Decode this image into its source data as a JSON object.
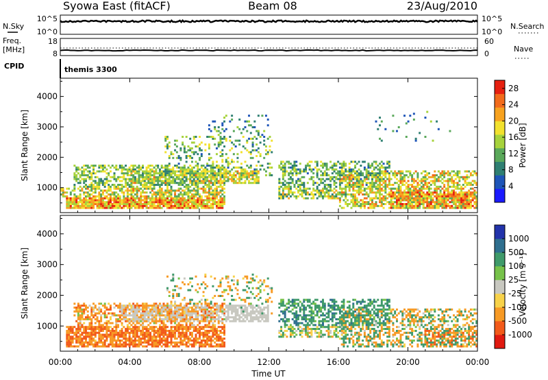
{
  "header": {
    "radar": "Syowa East (fitACF)",
    "beam": "Beam 08",
    "date": "23/Aug/2010"
  },
  "status_panels": {
    "nsky_label": "N.Sky",
    "nsearch_label": "N.Search",
    "nsky_ticks": [
      "10^5",
      "10^0"
    ],
    "nsearch_ticks": [
      "10^5",
      "10^0"
    ],
    "freq_label_1": "Freq.",
    "freq_label_2": "[MHz]",
    "freq_ticks": [
      "18",
      "8"
    ],
    "nave_label": "Nave",
    "nave_ticks": [
      "60",
      "0"
    ],
    "cpid_label": "CPID",
    "cpid_value": "themis 3300",
    "colors": {
      "trace": "#000000"
    }
  },
  "chart_data": [
    {
      "type": "heatmap",
      "name": "power",
      "xlabel": "",
      "ylabel": "Slant Range [km]",
      "x_range_hours": [
        0,
        24
      ],
      "ylim_km": [
        180,
        4600
      ],
      "y_ticks": [
        "4000",
        "3000",
        "2000",
        "1000"
      ],
      "y_tick_values": [
        4000,
        3000,
        2000,
        1000
      ],
      "colorbar": {
        "label": "Power [dB]",
        "ticks": [
          "28",
          "24",
          "20",
          "16",
          "12",
          "8",
          "4"
        ],
        "tick_values": [
          28,
          24,
          20,
          16,
          12,
          8,
          4
        ],
        "range": [
          0,
          30
        ],
        "colors": [
          "#1a1aff",
          "#1e55b8",
          "#2f7f72",
          "#5aa85a",
          "#a6d23c",
          "#f2e12e",
          "#f7a21f",
          "#f26b1b",
          "#e62010"
        ]
      },
      "regions": [
        {
          "t": [
            0.3,
            9.5
          ],
          "r": [
            300,
            680
          ],
          "density": 0.9,
          "v": [
            14,
            29
          ]
        },
        {
          "t": [
            0.0,
            9.5
          ],
          "r": [
            680,
            1000
          ],
          "density": 0.65,
          "v": [
            10,
            24
          ]
        },
        {
          "t": [
            0.8,
            9.5
          ],
          "r": [
            1000,
            1750
          ],
          "density": 0.55,
          "v": [
            8,
            20
          ]
        },
        {
          "t": [
            4.0,
            11.5
          ],
          "r": [
            1150,
            1600
          ],
          "density": 0.7,
          "v": [
            10,
            24
          ]
        },
        {
          "t": [
            6.0,
            12.2
          ],
          "r": [
            1400,
            2700
          ],
          "density": 0.25,
          "v": [
            6,
            20
          ]
        },
        {
          "t": [
            8.5,
            12.0
          ],
          "r": [
            2500,
            3400
          ],
          "density": 0.12,
          "v": [
            4,
            16
          ]
        },
        {
          "t": [
            12.5,
            16.5
          ],
          "r": [
            600,
            1000
          ],
          "density": 0.65,
          "v": [
            8,
            22
          ]
        },
        {
          "t": [
            12.5,
            19.0
          ],
          "r": [
            1000,
            1900
          ],
          "density": 0.5,
          "v": [
            6,
            18
          ]
        },
        {
          "t": [
            16.0,
            24.0
          ],
          "r": [
            300,
            1600
          ],
          "density": 0.55,
          "v": [
            10,
            26
          ]
        },
        {
          "t": [
            19.0,
            24.0
          ],
          "r": [
            300,
            900
          ],
          "density": 0.8,
          "v": [
            18,
            30
          ]
        },
        {
          "t": [
            18.0,
            22.5
          ],
          "r": [
            2500,
            3500
          ],
          "density": 0.05,
          "v": [
            4,
            14
          ]
        }
      ]
    },
    {
      "type": "heatmap",
      "name": "velocity",
      "xlabel": "Time UT",
      "ylabel": "Slant Range [km]",
      "x_range_hours": [
        0,
        24
      ],
      "x_ticks": [
        "00:00",
        "04:00",
        "08:00",
        "12:00",
        "16:00",
        "20:00",
        "00:00"
      ],
      "x_tick_values": [
        0,
        4,
        8,
        12,
        16,
        20,
        24
      ],
      "ylim_km": [
        180,
        4600
      ],
      "y_ticks": [
        "4000",
        "3000",
        "2000",
        "1000"
      ],
      "y_tick_values": [
        4000,
        3000,
        2000,
        1000
      ],
      "colorbar": {
        "label": "Velocity [m s⁻¹]",
        "ticks": [
          "1000",
          "500",
          "100",
          "25",
          "-25",
          "-100",
          "-500",
          "-1000"
        ],
        "tick_values": [
          1000,
          500,
          100,
          25,
          -25,
          -100,
          -500,
          -1000
        ],
        "colors": [
          "#2233aa",
          "#2f6f8f",
          "#3f9a6a",
          "#77c24a",
          "#c8c8c0",
          "#f7d24a",
          "#f79a25",
          "#f25a1a",
          "#e01a10"
        ]
      },
      "regions": [
        {
          "t": [
            0.3,
            9.5
          ],
          "r": [
            300,
            1000
          ],
          "density": 0.8,
          "v": [
            -900,
            -80
          ]
        },
        {
          "t": [
            0.8,
            9.5
          ],
          "r": [
            1000,
            1750
          ],
          "density": 0.5,
          "v": [
            -600,
            60
          ]
        },
        {
          "t": [
            3.5,
            12.0
          ],
          "r": [
            1100,
            1700
          ],
          "density": 0.75,
          "v": [
            -20,
            20
          ]
        },
        {
          "t": [
            6.0,
            12.2
          ],
          "r": [
            1400,
            2700
          ],
          "density": 0.2,
          "v": [
            -300,
            300
          ]
        },
        {
          "t": [
            12.5,
            16.5
          ],
          "r": [
            600,
            1000
          ],
          "density": 0.55,
          "v": [
            -150,
            200
          ]
        },
        {
          "t": [
            12.5,
            19.0
          ],
          "r": [
            1000,
            1900
          ],
          "density": 0.5,
          "v": [
            30,
            600
          ]
        },
        {
          "t": [
            16.0,
            24.0
          ],
          "r": [
            300,
            1600
          ],
          "density": 0.5,
          "v": [
            -500,
            500
          ]
        },
        {
          "t": [
            21.0,
            24.0
          ],
          "r": [
            300,
            900
          ],
          "density": 0.5,
          "v": [
            -1000,
            -200
          ]
        }
      ]
    }
  ]
}
